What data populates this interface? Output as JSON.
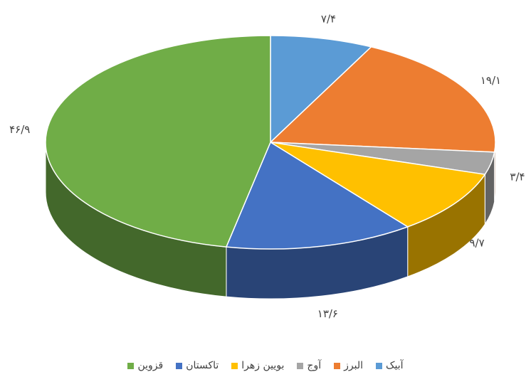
{
  "chart_data": {
    "type": "pie3d",
    "categories": [
      "آبیک",
      "البرز",
      "آوج",
      "بویین زهرا",
      "تاکستان",
      "قزوین"
    ],
    "values": [
      7.4,
      19.1,
      3.4,
      9.7,
      13.6,
      46.9
    ],
    "value_labels": [
      "۷/۴",
      "۱۹/۱",
      "۳/۴",
      "۹/۷",
      "۱۳/۶",
      "۴۶/۹"
    ],
    "colors": [
      "#5b9bd5",
      "#ed7d31",
      "#a5a5a5",
      "#ffc000",
      "#4472c4",
      "#70ad47"
    ],
    "legend": "bottom"
  }
}
